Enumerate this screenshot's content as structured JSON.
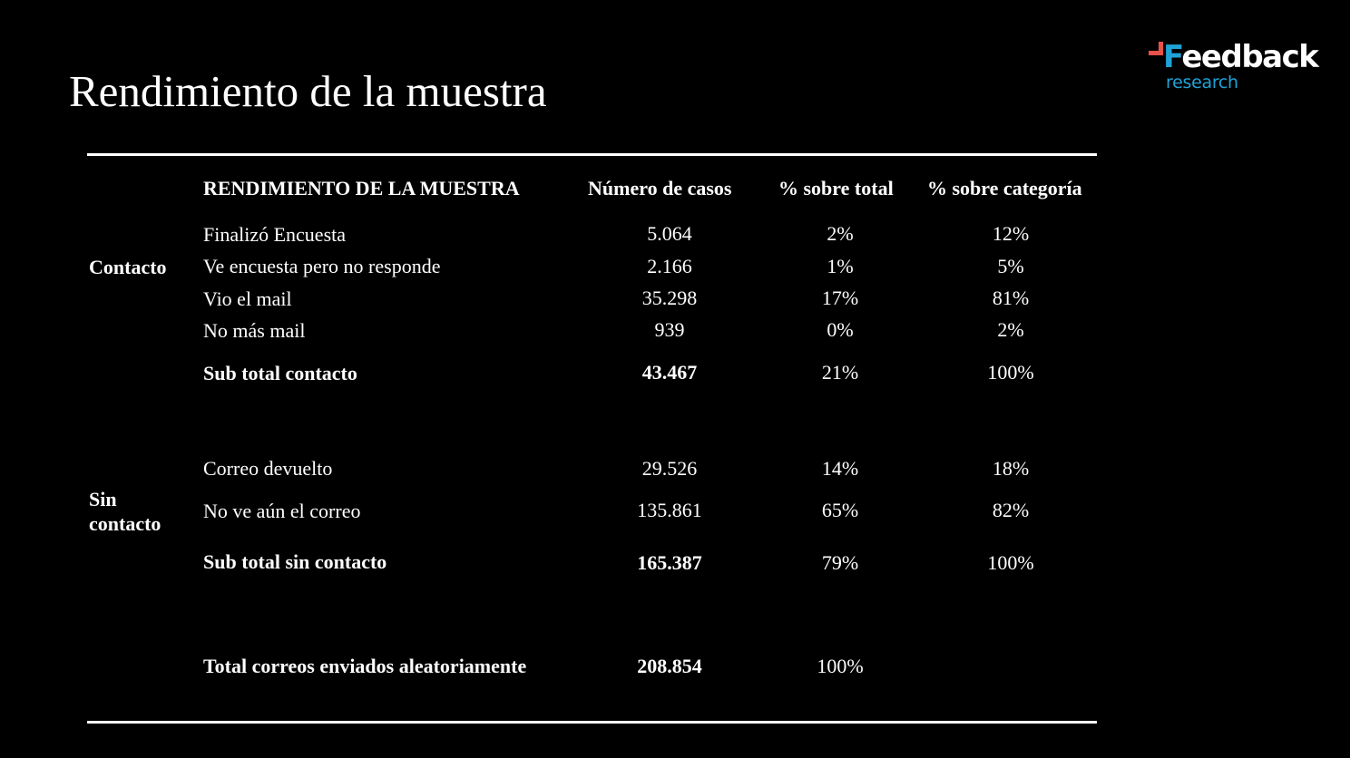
{
  "title": "Rendimiento de la muestra",
  "logo": {
    "word_accent": "F",
    "word_rest": "eedback",
    "sub": "research",
    "colors": {
      "accent_red": "#e8514a",
      "accent_blue": "#1fa3d6"
    }
  },
  "table": {
    "headers": {
      "label": "RENDIMIENTO DE LA MUESTRA",
      "cases": "Número de casos",
      "pct_total": "% sobre total",
      "pct_category": "% sobre categoría"
    },
    "groups": {
      "contacto": "Contacto",
      "sin_contacto_1": "Sin",
      "sin_contacto_2": "contacto"
    },
    "rows": [
      {
        "label": "Finalizó Encuesta",
        "cases": "5.064",
        "pct_total": "2%",
        "pct_category": "12%"
      },
      {
        "label": "Ve encuesta pero no responde",
        "cases": "2.166",
        "pct_total": "1%",
        "pct_category": "5%"
      },
      {
        "label": "Vio el mail",
        "cases": "35.298",
        "pct_total": "17%",
        "pct_category": "81%"
      },
      {
        "label": "No más mail",
        "cases": "939",
        "pct_total": "0%",
        "pct_category": "2%"
      },
      {
        "label": "Sub total contacto",
        "cases": "43.467",
        "pct_total": "21%",
        "pct_category": "100%"
      },
      {
        "label": "Correo devuelto",
        "cases": "29.526",
        "pct_total": "14%",
        "pct_category": "18%"
      },
      {
        "label": "No ve aún el correo",
        "cases": "135.861",
        "pct_total": "65%",
        "pct_category": "82%"
      },
      {
        "label": "Sub total sin contacto",
        "cases": "165.387",
        "pct_total": "79%",
        "pct_category": "100%"
      },
      {
        "label": "Total correos enviados aleatoriamente",
        "cases": "208.854",
        "pct_total": "100%"
      }
    ]
  }
}
